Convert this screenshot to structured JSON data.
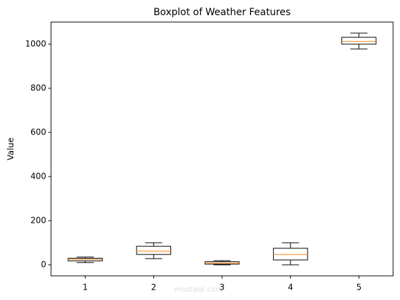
{
  "chart_data": {
    "type": "box",
    "title": "Boxplot of Weather Features",
    "y_label": "Value",
    "x": [
      1,
      2,
      3,
      4,
      5
    ],
    "boxes": [
      {
        "whislo": 10,
        "q1": 18,
        "med": 25,
        "q3": 30,
        "whishi": 35
      },
      {
        "whislo": 28,
        "q1": 47,
        "med": 62,
        "q3": 84,
        "whishi": 100
      },
      {
        "whislo": 0,
        "q1": 3,
        "med": 8,
        "q3": 14,
        "whishi": 19
      },
      {
        "whislo": 0,
        "q1": 22,
        "med": 47,
        "q3": 75,
        "whishi": 100
      },
      {
        "whislo": 978,
        "q1": 1000,
        "med": 1012,
        "q3": 1031,
        "whishi": 1050
      }
    ],
    "box_color": "#000000",
    "median_color": "#ff7f0e",
    "xlim": [
      0.5,
      5.5
    ],
    "xticks": [
      1,
      2,
      3,
      4,
      5
    ],
    "ylim": [
      -50,
      1100
    ],
    "yticks": [
      0,
      200,
      400,
      600,
      800,
      1000
    ],
    "watermark": "mostaql.com"
  }
}
